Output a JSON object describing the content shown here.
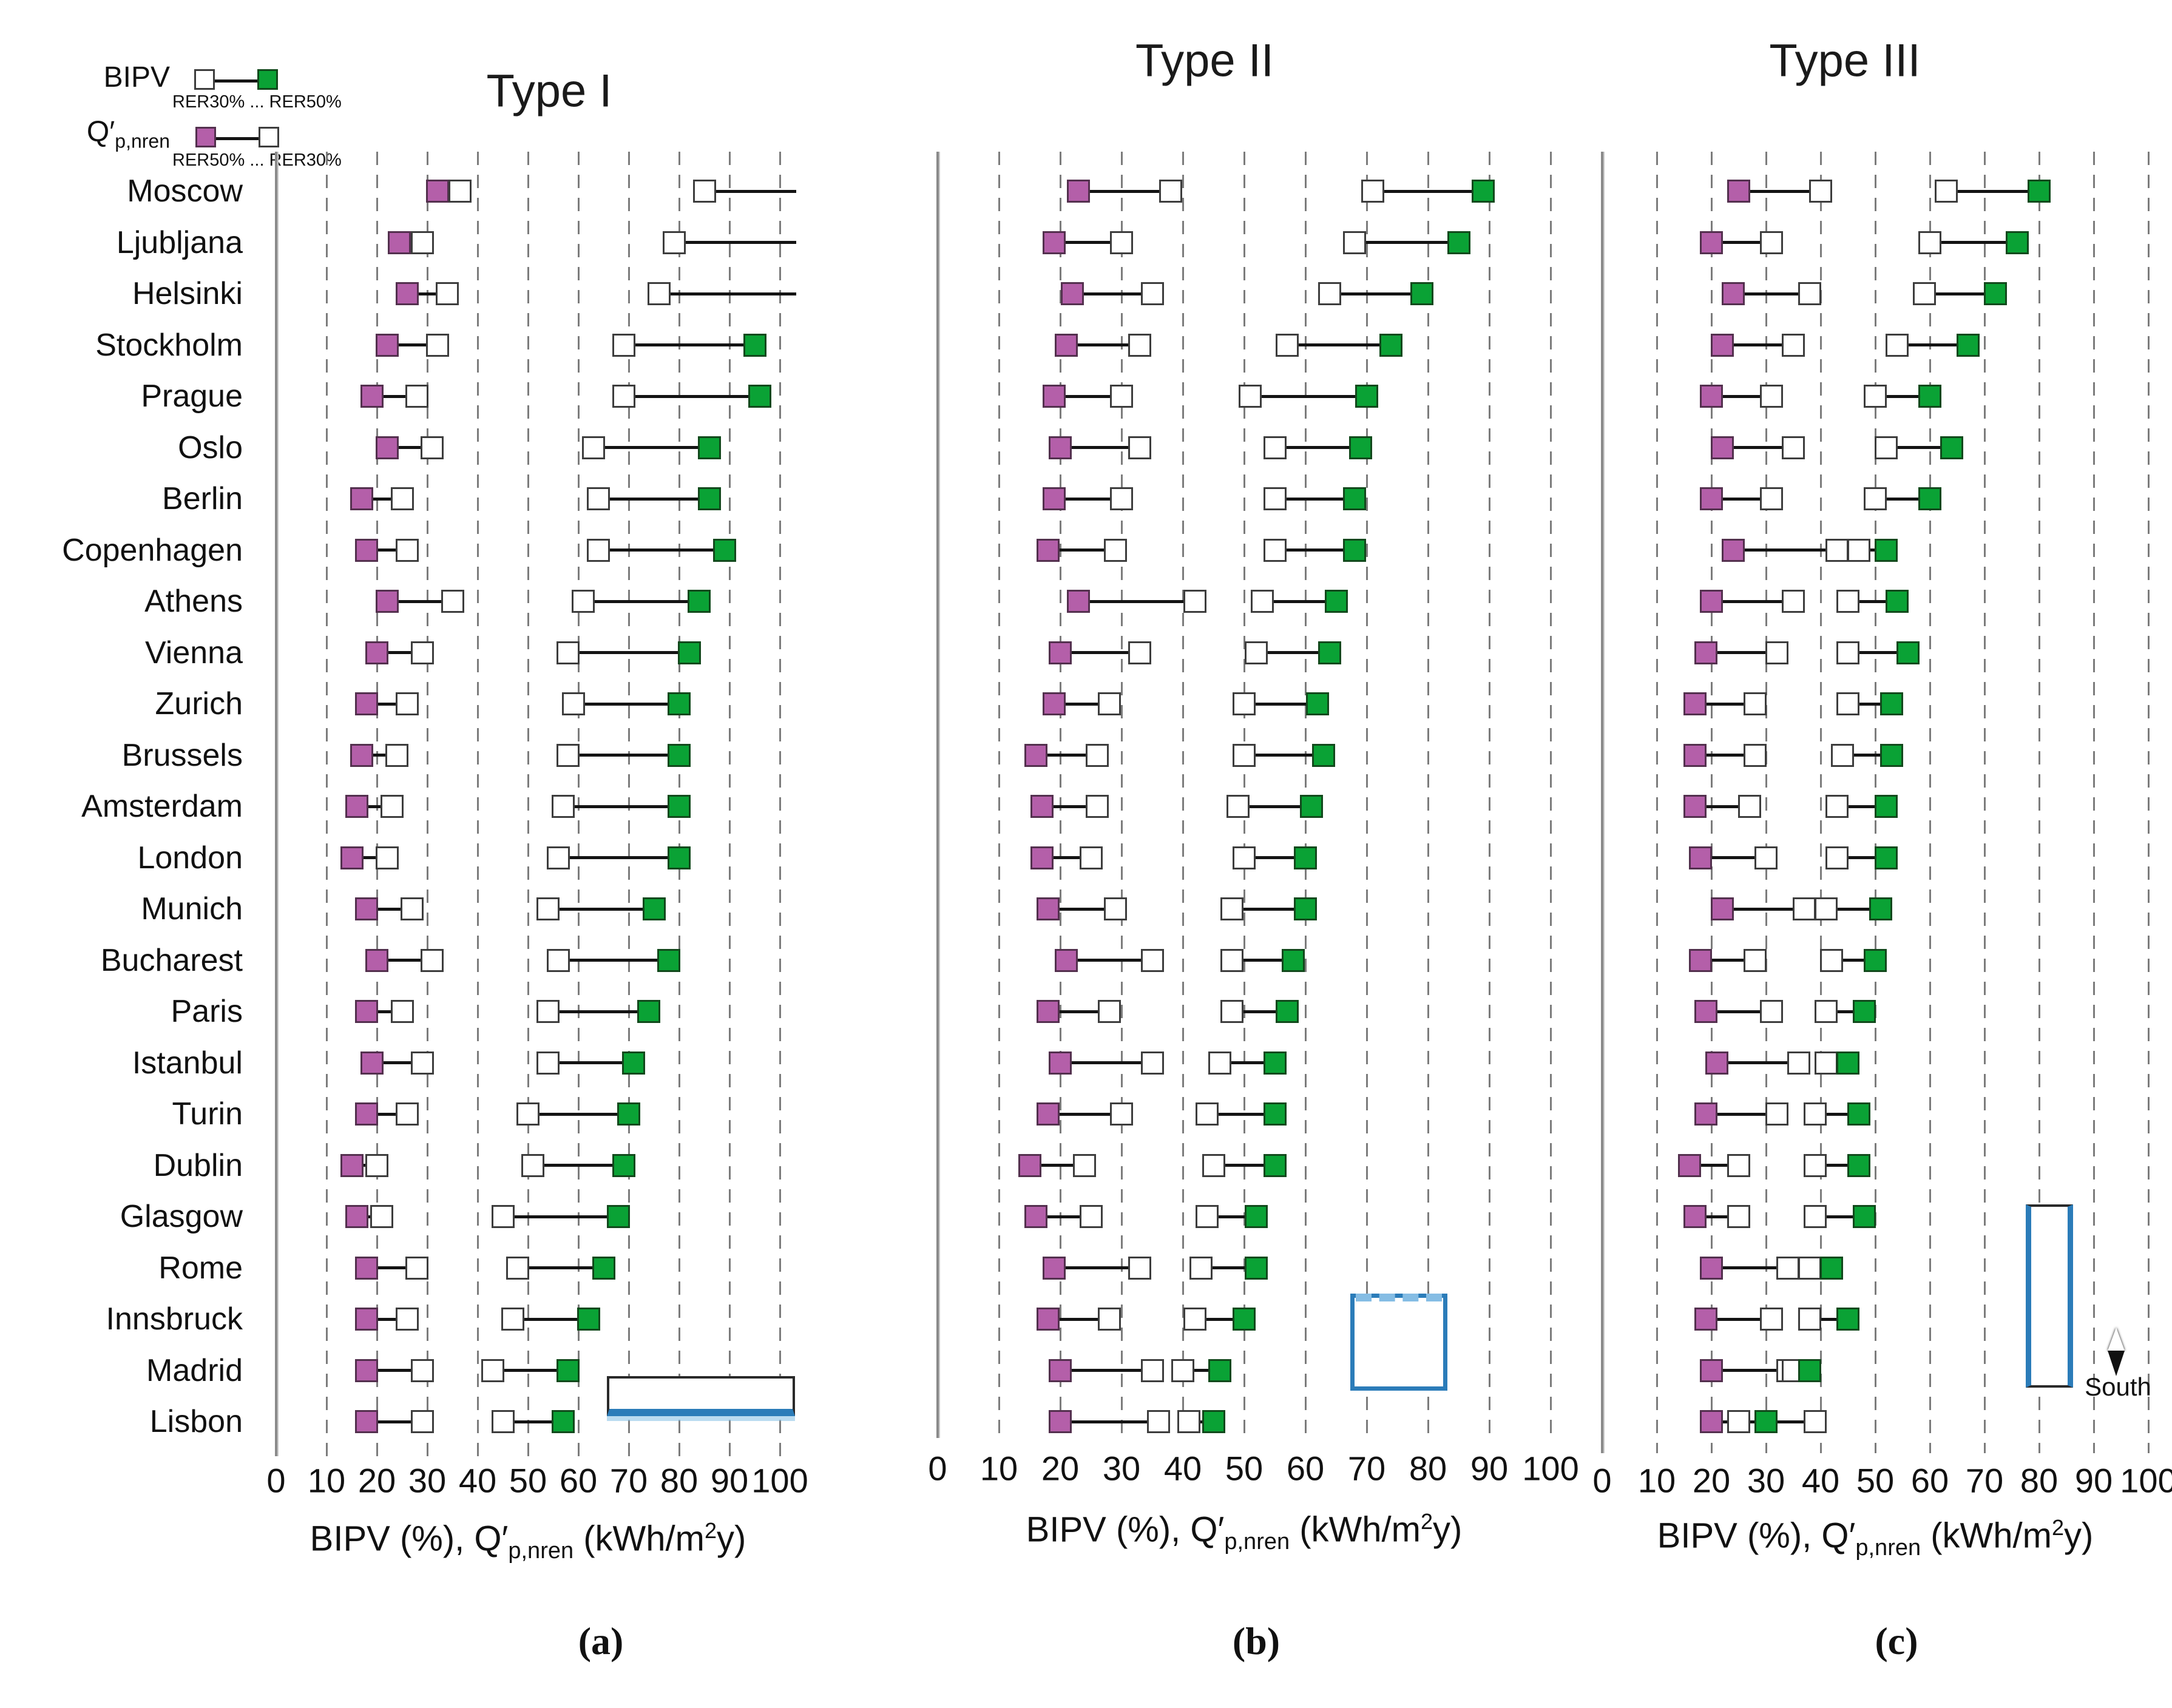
{
  "figure": {
    "legend": {
      "bipv": {
        "label": "BIPV",
        "range_text": "RER30% ... RER50%"
      },
      "qpnren": {
        "label": "Q′",
        "label_sub": "p,nren",
        "range_text": "RER50% ... RER30%"
      }
    },
    "south_label": "South",
    "axis_label_parts": {
      "pre": "BIPV (%), Q′",
      "sub": "p,nren",
      "mid": " (kWh/m",
      "sup": "2",
      "post": "y)"
    },
    "tick_labels": [
      "0",
      "10",
      "20",
      "30",
      "40",
      "50",
      "60",
      "70",
      "80",
      "90",
      "100"
    ],
    "colors": {
      "qpnren_rer50_marker": "#b45fa9",
      "bipv_rer50_marker": "#0aa235",
      "neutral_marker": "#ffffff",
      "building_blue": "#2b7cb9",
      "gridline": "#7c7c7c"
    }
  },
  "chart_data": {
    "type": "dumbbell",
    "orientation": "horizontal",
    "xlim": [
      0,
      100
    ],
    "xticks": [
      0,
      10,
      20,
      30,
      40,
      50,
      60,
      70,
      80,
      90,
      100
    ],
    "gridlines": "dashed vertical every 10",
    "xlabel": "BIPV (%), Q'p,nren (kWh/m2y)",
    "categories": [
      "Moscow",
      "Ljubljana",
      "Helsinki",
      "Stockholm",
      "Prague",
      "Oslo",
      "Berlin",
      "Copenhagen",
      "Athens",
      "Vienna",
      "Zurich",
      "Brussels",
      "Amsterdam",
      "London",
      "Munich",
      "Bucharest",
      "Paris",
      "Istanbul",
      "Turin",
      "Dublin",
      "Glasgow",
      "Rome",
      "Innsbruck",
      "Madrid",
      "Lisbon"
    ],
    "panels": [
      {
        "title": "Type I",
        "letter": "(a)",
        "building_icon": "low-rise-wide-building",
        "series": [
          {
            "name": "Q'p,nren",
            "from_label": "RER50%",
            "to_label": "RER30%",
            "from_marker": "purple",
            "to_marker": "white",
            "from": [
              32,
              24.5,
              26,
              22,
              19,
              22,
              17,
              18,
              22,
              20,
              18,
              17,
              16,
              15,
              18,
              20,
              18,
              19,
              18,
              15,
              16,
              18,
              18,
              18,
              18
            ],
            "to": [
              36.5,
              29,
              34,
              32,
              28,
              31,
              25,
              26,
              35,
              29,
              26,
              24,
              23,
              22,
              27,
              31,
              25,
              29,
              26,
              20,
              21,
              28,
              26,
              29,
              29
            ]
          },
          {
            "name": "BIPV",
            "from_label": "RER30%",
            "to_label": "RER50%",
            "from_marker": "white",
            "to_marker": "green",
            "from": [
              85,
              79,
              76,
              69,
              69,
              63,
              64,
              64,
              61,
              58,
              59,
              58,
              57,
              56,
              54,
              56,
              54,
              54,
              50,
              51,
              45,
              48,
              47,
              43,
              45
            ],
            "to": [
              null,
              null,
              null,
              95,
              96,
              86,
              86,
              89,
              84,
              82,
              80,
              80,
              80,
              80,
              75,
              78,
              74,
              71,
              70,
              69,
              68,
              65,
              62,
              58,
              57
            ],
            "clipped_beyond_100": [
              "Moscow",
              "Ljubljana",
              "Helsinki"
            ]
          }
        ]
      },
      {
        "title": "Type II",
        "letter": "(b)",
        "building_icon": "mid-rise-square-building-dashed-top",
        "series": [
          {
            "name": "Q'p,nren",
            "from_label": "RER50%",
            "to_label": "RER30%",
            "from_marker": "purple",
            "to_marker": "white",
            "from": [
              23,
              19,
              22,
              21,
              19,
              20,
              19,
              18,
              23,
              20,
              19,
              16,
              17,
              17,
              18,
              21,
              18,
              20,
              18,
              15,
              16,
              19,
              18,
              20,
              20
            ],
            "to": [
              38,
              30,
              35,
              33,
              30,
              33,
              30,
              29,
              42,
              33,
              28,
              26,
              26,
              25,
              29,
              35,
              28,
              35,
              30,
              24,
              25,
              33,
              28,
              35,
              36
            ]
          },
          {
            "name": "BIPV",
            "from_label": "RER30%",
            "to_label": "RER50%",
            "from_marker": "white",
            "to_marker": "green",
            "from": [
              71,
              68,
              64,
              57,
              51,
              55,
              55,
              55,
              53,
              52,
              50,
              50,
              49,
              50,
              48,
              48,
              48,
              46,
              44,
              45,
              44,
              43,
              42,
              40,
              41
            ],
            "to": [
              89,
              85,
              79,
              74,
              70,
              69,
              68,
              68,
              65,
              64,
              62,
              63,
              61,
              60,
              60,
              58,
              57,
              55,
              55,
              55,
              52,
              52,
              50,
              46,
              45
            ],
            "clipped_beyond_100": []
          }
        ]
      },
      {
        "title": "Type III",
        "letter": "(c)",
        "building_icon": "high-rise-tall-building",
        "annotation": {
          "text": "South",
          "icon": "compass-arrow"
        },
        "series": [
          {
            "name": "Q'p,nren",
            "from_label": "RER50%",
            "to_label": "RER30%",
            "from_marker": "purple",
            "to_marker": "white",
            "from": [
              25,
              20,
              24,
              22,
              20,
              22,
              20,
              24,
              20,
              19,
              17,
              17,
              17,
              18,
              22,
              18,
              19,
              21,
              19,
              16,
              17,
              20,
              19,
              20,
              20
            ],
            "to": [
              40,
              31,
              38,
              35,
              31,
              35,
              31,
              43,
              35,
              32,
              28,
              28,
              27,
              30,
              37,
              28,
              31,
              36,
              32,
              25,
              25,
              34,
              31,
              34,
              39
            ]
          },
          {
            "name": "BIPV",
            "from_label": "RER30%",
            "to_label": "RER50%",
            "from_marker": "white",
            "to_marker": "green",
            "from": [
              63,
              60,
              59,
              54,
              50,
              52,
              50,
              47,
              45,
              45,
              45,
              44,
              43,
              43,
              41,
              42,
              41,
              41,
              39,
              39,
              39,
              38,
              38,
              35,
              25
            ],
            "to": [
              80,
              76,
              72,
              67,
              60,
              64,
              60,
              52,
              54,
              56,
              53,
              53,
              52,
              52,
              51,
              50,
              48,
              45,
              47,
              47,
              48,
              42,
              45,
              38,
              30
            ],
            "clipped_beyond_100": []
          }
        ]
      }
    ]
  }
}
